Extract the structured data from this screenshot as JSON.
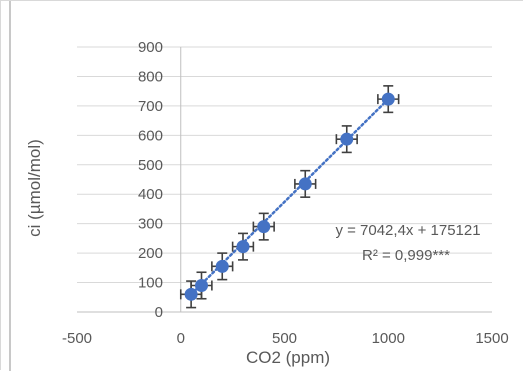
{
  "chart_data": {
    "type": "scatter",
    "title": "",
    "xlabel": "CO2 (ppm)",
    "ylabel": "ci (µmol/mol)",
    "xlim": [
      -500,
      1500
    ],
    "ylim": [
      0,
      900
    ],
    "x_ticks": [
      -500,
      0,
      500,
      1000,
      1500
    ],
    "y_ticks": [
      0,
      100,
      200,
      300,
      400,
      500,
      600,
      700,
      800,
      900
    ],
    "x_tick_labels": [
      "-500",
      "0",
      "500",
      "1000",
      "1500"
    ],
    "y_tick_labels": [
      "0",
      "100",
      "200",
      "300",
      "400",
      "500",
      "600",
      "700",
      "800",
      "900"
    ],
    "grid": "horizontal",
    "legend": "none",
    "points": [
      {
        "x": 50,
        "y": 60,
        "x_err": 50,
        "y_err": 45
      },
      {
        "x": 100,
        "y": 90,
        "x_err": 50,
        "y_err": 45
      },
      {
        "x": 200,
        "y": 155,
        "x_err": 50,
        "y_err": 45
      },
      {
        "x": 300,
        "y": 222,
        "x_err": 50,
        "y_err": 45
      },
      {
        "x": 400,
        "y": 290,
        "x_err": 50,
        "y_err": 45
      },
      {
        "x": 600,
        "y": 435,
        "x_err": 50,
        "y_err": 45
      },
      {
        "x": 800,
        "y": 587,
        "x_err": 50,
        "y_err": 45
      },
      {
        "x": 1000,
        "y": 723,
        "x_err": 50,
        "y_err": 45
      }
    ],
    "trendline": {
      "style": "dotted",
      "x": [
        50,
        1000
      ],
      "y": [
        60,
        723
      ]
    },
    "equation_text": "y = 7042,4x + 175121",
    "r2_text": "R² = 0,999***",
    "colors": {
      "marker": "#4472c4",
      "trendline": "#4472c4",
      "error_bar": "#404040",
      "grid": "#d9d9d9",
      "text": "#595959"
    }
  }
}
